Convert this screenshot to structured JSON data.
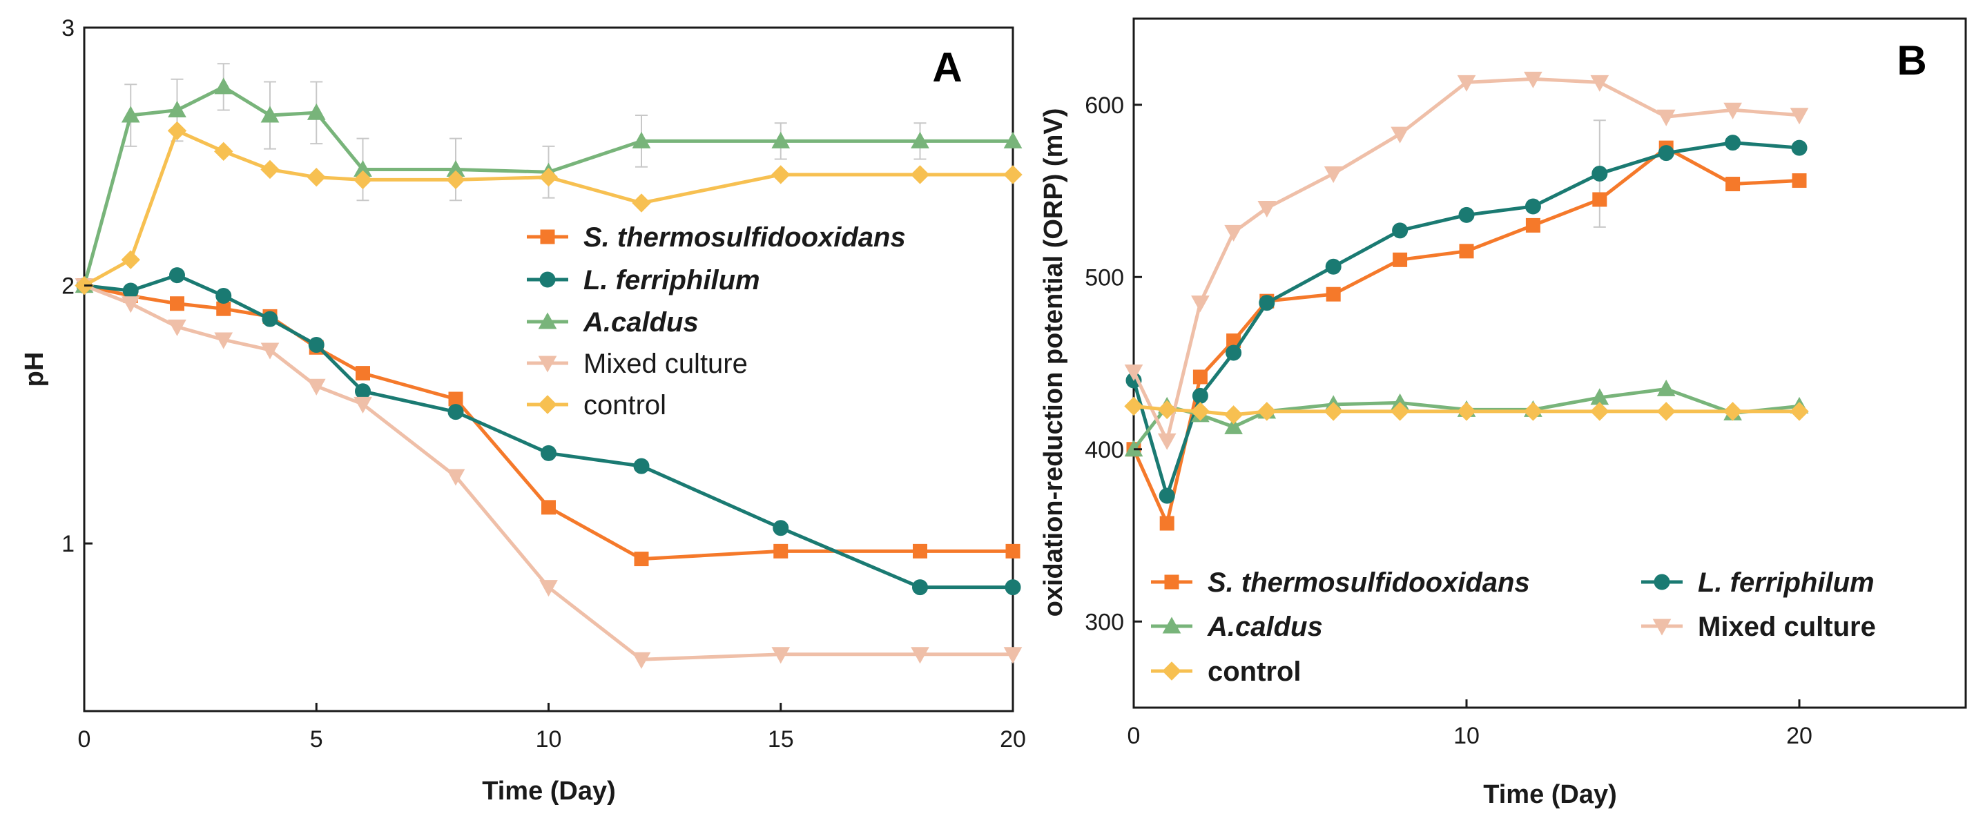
{
  "colors": {
    "thermo": "#f5792a",
    "ferri": "#1a7a72",
    "caldus": "#78b47a",
    "mixed": "#efbfa8",
    "control": "#f7c051",
    "axis": "#1a1a1a",
    "errorbar": "#c8c8c8"
  },
  "chart_data": [
    {
      "type": "line",
      "panel_label": "A",
      "title": "",
      "xlabel": "Time (Day)",
      "ylabel": "pH",
      "xlim": [
        0,
        20
      ],
      "ylim": [
        0.35,
        3.0
      ],
      "xticks": [
        0,
        5,
        10,
        15,
        20
      ],
      "xtick_labels": [
        "0",
        "5",
        "10",
        "15",
        "20"
      ],
      "yticks": [
        1,
        2,
        3
      ],
      "ytick_labels": [
        "1",
        "2",
        "3"
      ],
      "legend_position": "center-right",
      "series": [
        {
          "name": "S. thermosulfidooxidans",
          "style": "italic",
          "color_key": "thermo",
          "marker": "square",
          "x": [
            0,
            1,
            2,
            3,
            4,
            5,
            6,
            8,
            10,
            12,
            15,
            18,
            20
          ],
          "y": [
            2.0,
            1.96,
            1.93,
            1.91,
            1.88,
            1.76,
            1.66,
            1.56,
            1.14,
            0.94,
            0.97,
            0.97,
            0.97
          ]
        },
        {
          "name": "L. ferriphilum",
          "style": "italic",
          "color_key": "ferri",
          "marker": "circle",
          "x": [
            0,
            1,
            2,
            3,
            4,
            5,
            6,
            8,
            10,
            12,
            15,
            18,
            20
          ],
          "y": [
            2.0,
            1.98,
            2.04,
            1.96,
            1.87,
            1.77,
            1.59,
            1.51,
            1.35,
            1.3,
            1.06,
            0.83,
            0.83
          ]
        },
        {
          "name": "A.caldus",
          "style": "italic",
          "color_key": "caldus",
          "marker": "triangle-up",
          "x": [
            0,
            1,
            2,
            3,
            4,
            5,
            6,
            8,
            10,
            12,
            15,
            18,
            20
          ],
          "y": [
            2.0,
            2.66,
            2.68,
            2.77,
            2.66,
            2.67,
            2.45,
            2.45,
            2.44,
            2.56,
            2.56,
            2.56,
            2.56
          ],
          "error": [
            0,
            0.12,
            0.12,
            0.09,
            0.13,
            0.12,
            0.12,
            0.12,
            0.1,
            0.1,
            0.07,
            0.07,
            0.0
          ]
        },
        {
          "name": "Mixed culture",
          "style": "normal",
          "color_key": "mixed",
          "marker": "triangle-down",
          "x": [
            0,
            1,
            2,
            3,
            4,
            5,
            6,
            8,
            10,
            12,
            15,
            18,
            20
          ],
          "y": [
            2.0,
            1.93,
            1.84,
            1.79,
            1.75,
            1.61,
            1.54,
            1.26,
            0.83,
            0.55,
            0.57,
            0.57,
            0.57
          ]
        },
        {
          "name": "control",
          "style": "normal",
          "color_key": "control",
          "marker": "diamond",
          "x": [
            0,
            1,
            2,
            3,
            4,
            5,
            6,
            8,
            10,
            12,
            15,
            18,
            20
          ],
          "y": [
            2.0,
            2.1,
            2.6,
            2.52,
            2.45,
            2.42,
            2.41,
            2.41,
            2.42,
            2.32,
            2.43,
            2.43,
            2.43
          ]
        }
      ]
    },
    {
      "type": "line",
      "panel_label": "B",
      "title": "",
      "xlabel": "Time (Day)",
      "ylabel": "oxidation-reduction potential (ORP) (mV)",
      "xlim": [
        0,
        25
      ],
      "ylim": [
        250,
        650
      ],
      "xticks": [
        0,
        10,
        20
      ],
      "xtick_labels": [
        "0",
        "10",
        "20"
      ],
      "yticks": [
        300,
        400,
        500,
        600
      ],
      "ytick_labels": [
        "300",
        "400",
        "500",
        "600"
      ],
      "legend_position": "bottom",
      "series": [
        {
          "name": "S. thermosulfidooxidans",
          "style": "italic",
          "color_key": "thermo",
          "marker": "square",
          "x": [
            0,
            1,
            2,
            3,
            4,
            6,
            8,
            10,
            12,
            14,
            16,
            18,
            20
          ],
          "y": [
            400,
            357,
            442,
            463,
            486,
            490,
            510,
            515,
            530,
            545,
            575,
            554,
            556
          ]
        },
        {
          "name": "L. ferriphilum",
          "style": "italic",
          "color_key": "ferri",
          "marker": "circle",
          "x": [
            0,
            1,
            2,
            3,
            4,
            6,
            8,
            10,
            12,
            14,
            16,
            18,
            20
          ],
          "y": [
            440,
            373,
            431,
            456,
            485,
            506,
            527,
            536,
            541,
            560,
            572,
            578,
            575
          ],
          "error": [
            0,
            0,
            0,
            0,
            0,
            0,
            0,
            0,
            0,
            31,
            0,
            0,
            0
          ]
        },
        {
          "name": "A.caldus",
          "style": "italic",
          "color_key": "caldus",
          "marker": "triangle-up",
          "x": [
            0,
            1,
            2,
            3,
            4,
            6,
            8,
            10,
            12,
            14,
            16,
            18,
            20
          ],
          "y": [
            400,
            425,
            420,
            413,
            422,
            426,
            427,
            423,
            423,
            430,
            435,
            421,
            425
          ]
        },
        {
          "name": "Mixed culture",
          "style": "bold",
          "color_key": "mixed",
          "marker": "triangle-down",
          "x": [
            0,
            1,
            2,
            3,
            4,
            6,
            8,
            10,
            12,
            14,
            16,
            18,
            20
          ],
          "y": [
            445,
            405,
            485,
            526,
            540,
            560,
            583,
            613,
            615,
            613,
            593,
            597,
            594
          ]
        },
        {
          "name": "control",
          "style": "bold",
          "color_key": "control",
          "marker": "diamond",
          "x": [
            0,
            1,
            2,
            3,
            4,
            6,
            8,
            10,
            12,
            14,
            16,
            18,
            20
          ],
          "y": [
            425,
            423,
            422,
            420,
            422,
            422,
            422,
            422,
            422,
            422,
            422,
            422,
            422
          ]
        }
      ]
    }
  ]
}
